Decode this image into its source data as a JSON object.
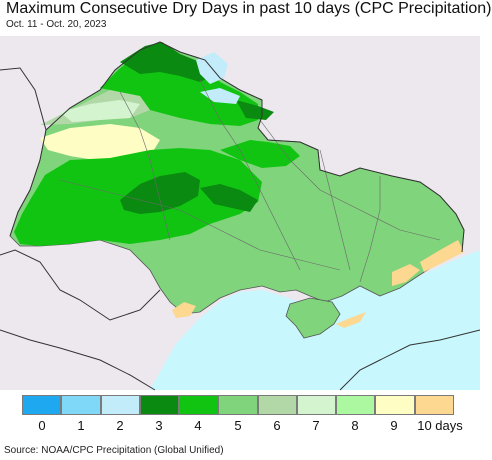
{
  "title": "Maximum Consecutive Dry Days in past 10 days (CPC Precipitation)",
  "subtitle": "Oct. 11 - Oct. 20, 2023",
  "source": "Source: NOAA/CPC Precipitation (Global Unified)",
  "legend": {
    "labels": [
      "0",
      "1",
      "2",
      "3",
      "4",
      "5",
      "6",
      "7",
      "8",
      "9",
      "10 days"
    ],
    "colors": [
      "#1ea8f0",
      "#80d8f8",
      "#c2ecfa",
      "#0a8a10",
      "#12c412",
      "#80d47c",
      "#b2d8a8",
      "#d4f4d0",
      "#acf8a0",
      "#fefec4",
      "#fdd890"
    ]
  },
  "map_colors": {
    "background": "#ece8ee",
    "sea": "#c8f8fe",
    "border": "#3a3a3a"
  }
}
